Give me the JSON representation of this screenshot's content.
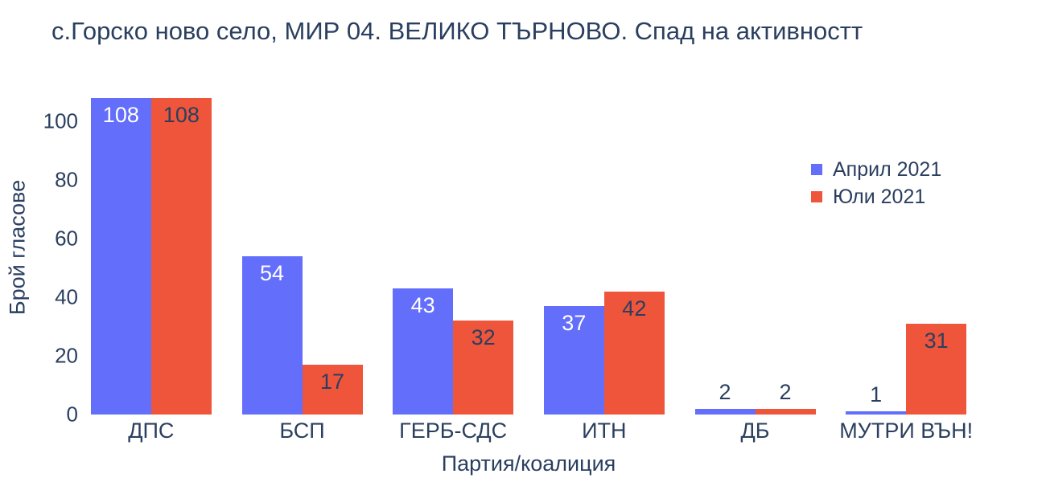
{
  "chart_data": {
    "type": "bar",
    "title": "с.Горско ново село, МИР 04. ВЕЛИКО ТЪРНОВО. Спад на активностт",
    "xlabel": "Партия/коалиция",
    "ylabel": "Брой гласове",
    "categories": [
      "ДПС",
      "БСП",
      "ГЕРБ-СДС",
      "ИТН",
      "ДБ",
      "МУТРИ ВЪН!"
    ],
    "series": [
      {
        "name": "Април 2021",
        "color": "#636EFA",
        "label_color_inside": "#ffffff",
        "values": [
          108,
          54,
          43,
          37,
          2,
          1
        ]
      },
      {
        "name": "Юли 2021",
        "color": "#EF553B",
        "label_color_inside": "#2a3f5f",
        "values": [
          108,
          17,
          32,
          42,
          2,
          31
        ]
      }
    ],
    "yticks": [
      0,
      20,
      40,
      60,
      80,
      100
    ],
    "ylim": [
      0,
      115
    ],
    "grid": false,
    "legend_position": "right",
    "colors": {
      "text": "#2a3f5f",
      "background": "#ffffff",
      "april_blue": "#636EFA",
      "july_red": "#EF553B"
    }
  }
}
